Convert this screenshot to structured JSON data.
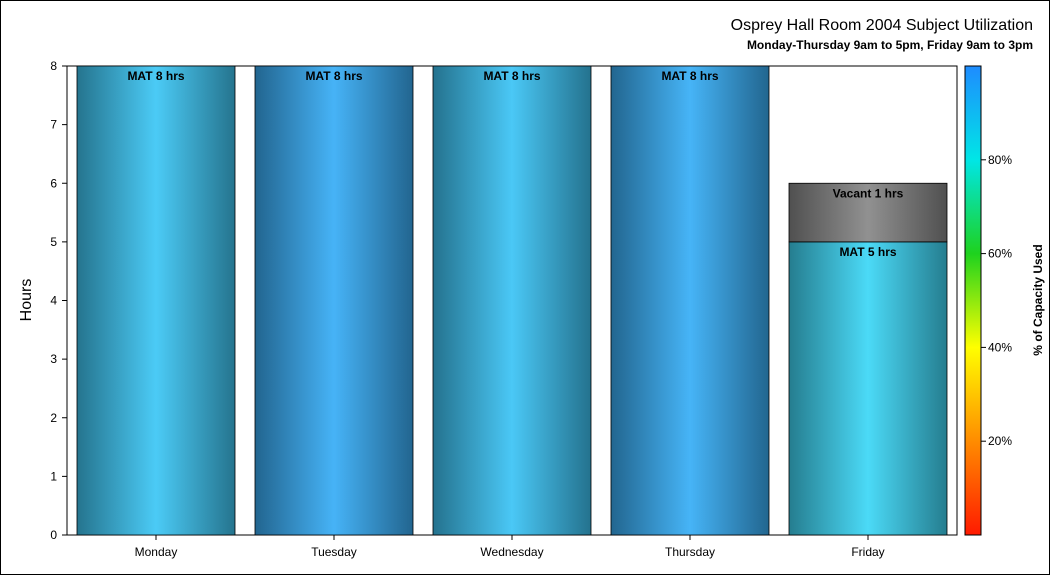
{
  "chart_data": {
    "type": "bar",
    "title": "Osprey Hall Room 2004 Subject Utilization",
    "subtitle": "Monday-Thursday 9am to 5pm, Friday 9am to 3pm",
    "xlabel": "",
    "ylabel": "Hours",
    "ylim": [
      0,
      8
    ],
    "yticks": [
      "0",
      "1",
      "2",
      "3",
      "4",
      "5",
      "6",
      "7",
      "8"
    ],
    "categories": [
      "Monday",
      "Tuesday",
      "Wednesday",
      "Thursday",
      "Friday"
    ],
    "stacks": [
      [
        {
          "label": "MAT 8 hrs",
          "value": 8,
          "color": "#3fc8f5"
        }
      ],
      [
        {
          "label": "MAT 8 hrs",
          "value": 8,
          "color": "#3aaef7"
        }
      ],
      [
        {
          "label": "MAT 8 hrs",
          "value": 8,
          "color": "#3ec4f5"
        }
      ],
      [
        {
          "label": "MAT 8 hrs",
          "value": 8,
          "color": "#3aaff7"
        }
      ],
      [
        {
          "label": "MAT 5 hrs",
          "value": 5,
          "color": "#3fd8f6"
        },
        {
          "label": "Vacant 1 hrs",
          "value": 1,
          "color": "#8a8a8a"
        }
      ]
    ],
    "colorbar": {
      "label": "% of Capacity Used",
      "ticks": [
        "20%",
        "40%",
        "60%",
        "80%"
      ],
      "tick_values": [
        20,
        40,
        60,
        80
      ],
      "range": [
        0,
        100
      ],
      "colors": [
        "#ff1a00",
        "#ff8c00",
        "#ffff00",
        "#1ed21e",
        "#00e6e6",
        "#1e8cff"
      ]
    },
    "grid": false,
    "legend": "colorbar-right"
  }
}
